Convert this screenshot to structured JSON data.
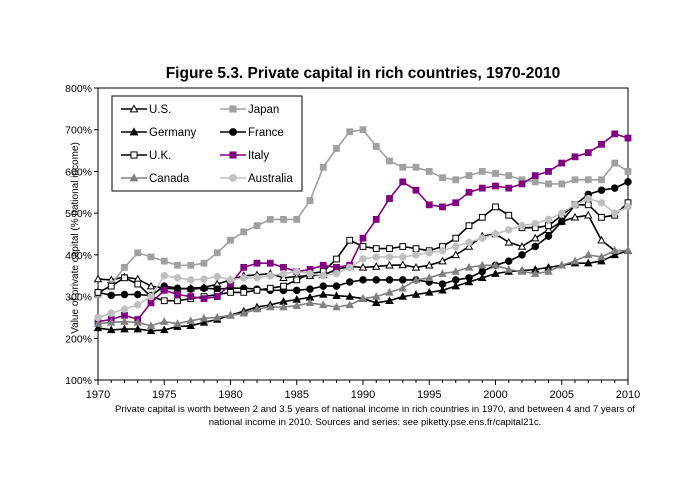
{
  "chart_data": {
    "type": "line",
    "title": "Figure 5.3. Private capital in rich countries, 1970-2010",
    "ylabel": "Value of private capital (% national income)",
    "xlabel": "",
    "ylim": [
      100,
      800
    ],
    "xlim": [
      1970,
      2010
    ],
    "x_ticks": [
      "1970",
      "1975",
      "1980",
      "1985",
      "1990",
      "1995",
      "2000",
      "2005",
      "2010"
    ],
    "y_ticks": [
      "100%",
      "200%",
      "300%",
      "400%",
      "500%",
      "600%",
      "700%",
      "800%"
    ],
    "grid": false,
    "legend_position": "top-left",
    "caption": "Private capital is worth between 2 and 3.5 years of national income in rich countries in 1970, and between 4 and 7 years of national income in 2010. Sources and series: see piketty.pse.ens.fr/capital21c.",
    "x": [
      1970,
      1971,
      1972,
      1973,
      1974,
      1975,
      1976,
      1977,
      1978,
      1979,
      1980,
      1981,
      1982,
      1983,
      1984,
      1985,
      1986,
      1987,
      1988,
      1989,
      1990,
      1991,
      1992,
      1993,
      1994,
      1995,
      1996,
      1997,
      1998,
      1999,
      2000,
      2001,
      2002,
      2003,
      2004,
      2005,
      2006,
      2007,
      2008,
      2009,
      2010
    ],
    "series": [
      {
        "name": "U.S.",
        "color": "#000000",
        "marker": "triangle-open",
        "values": [
          342,
          340,
          347,
          342,
          325,
          320,
          318,
          320,
          322,
          330,
          340,
          350,
          352,
          355,
          345,
          348,
          350,
          352,
          365,
          372,
          370,
          372,
          375,
          376,
          370,
          375,
          385,
          400,
          420,
          445,
          450,
          430,
          420,
          440,
          460,
          480,
          490,
          495,
          435,
          410,
          410
        ]
      },
      {
        "name": "Japan",
        "color": "#a0a0a0",
        "marker": "square-filled",
        "values": [
          305,
          330,
          370,
          405,
          395,
          385,
          375,
          375,
          380,
          405,
          435,
          455,
          470,
          485,
          485,
          485,
          530,
          610,
          655,
          695,
          700,
          660,
          625,
          610,
          610,
          600,
          585,
          580,
          590,
          600,
          595,
          590,
          580,
          575,
          570,
          570,
          580,
          580,
          580,
          620,
          600
        ]
      },
      {
        "name": "Germany",
        "color": "#000000",
        "marker": "triangle-filled",
        "values": [
          225,
          220,
          222,
          222,
          218,
          220,
          228,
          230,
          238,
          245,
          255,
          265,
          275,
          280,
          288,
          293,
          298,
          305,
          302,
          300,
          295,
          285,
          290,
          300,
          305,
          310,
          315,
          325,
          335,
          345,
          355,
          360,
          362,
          365,
          370,
          375,
          380,
          380,
          385,
          400,
          410
        ]
      },
      {
        "name": "France",
        "color": "#000000",
        "marker": "circle-filled",
        "values": [
          310,
          303,
          305,
          305,
          302,
          325,
          320,
          318,
          320,
          318,
          320,
          320,
          318,
          315,
          315,
          315,
          318,
          325,
          325,
          335,
          340,
          340,
          340,
          340,
          340,
          335,
          330,
          340,
          345,
          360,
          375,
          385,
          400,
          420,
          445,
          480,
          520,
          545,
          555,
          560,
          575
        ]
      },
      {
        "name": "U.K.",
        "color": "#000000",
        "marker": "square-open",
        "values": [
          310,
          325,
          345,
          330,
          300,
          290,
          290,
          295,
          300,
          305,
          310,
          310,
          315,
          320,
          325,
          340,
          355,
          360,
          390,
          435,
          420,
          415,
          415,
          420,
          415,
          410,
          420,
          440,
          470,
          490,
          515,
          495,
          465,
          465,
          470,
          495,
          520,
          520,
          490,
          495,
          525
        ]
      },
      {
        "name": "Italy",
        "color": "#800080",
        "marker": "square-filled",
        "values": [
          240,
          245,
          255,
          245,
          285,
          315,
          305,
          300,
          295,
          300,
          330,
          370,
          380,
          380,
          370,
          360,
          365,
          375,
          370,
          375,
          440,
          485,
          535,
          575,
          555,
          520,
          515,
          525,
          550,
          560,
          565,
          560,
          570,
          590,
          600,
          620,
          635,
          645,
          665,
          690,
          680
        ]
      },
      {
        "name": "Canada",
        "color": "#808080",
        "marker": "triangle-filled",
        "values": [
          235,
          238,
          240,
          238,
          230,
          240,
          235,
          242,
          248,
          250,
          255,
          260,
          270,
          275,
          275,
          278,
          285,
          280,
          275,
          280,
          295,
          300,
          310,
          320,
          340,
          345,
          355,
          360,
          370,
          375,
          375,
          365,
          360,
          355,
          360,
          375,
          385,
          400,
          395,
          410,
          410
        ]
      },
      {
        "name": "Australia",
        "color": "#c0c0c0",
        "marker": "circle-filled",
        "values": [
          250,
          260,
          270,
          280,
          300,
          350,
          345,
          340,
          342,
          348,
          340,
          345,
          345,
          350,
          355,
          360,
          355,
          350,
          355,
          370,
          390,
          395,
          395,
          395,
          400,
          405,
          410,
          420,
          430,
          440,
          450,
          460,
          470,
          475,
          485,
          500,
          520,
          535,
          525,
          500,
          515
        ]
      }
    ]
  }
}
